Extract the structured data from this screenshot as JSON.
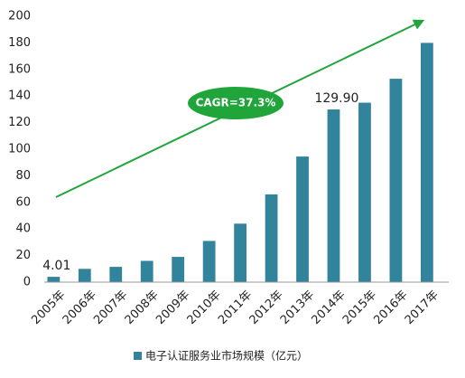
{
  "chart_data": {
    "type": "bar",
    "categories": [
      "2005年",
      "2006年",
      "2007年",
      "2008年",
      "2009年",
      "2010年",
      "2011年",
      "2012年",
      "2013年",
      "2014年",
      "2015年",
      "2016年",
      "2017年"
    ],
    "series": [
      {
        "name": "电子认证服务业市场规模（亿元）",
        "color": "#31849b",
        "values": [
          4.01,
          10,
          11.5,
          16,
          19,
          31,
          44,
          66,
          94.5,
          129.9,
          135,
          153,
          180
        ],
        "value_labels": [
          "4.01",
          null,
          null,
          null,
          null,
          null,
          null,
          null,
          null,
          "129.90",
          null,
          null,
          null
        ]
      }
    ],
    "annotation": "CAGR=37.3%",
    "ylim": [
      0,
      200
    ],
    "yticks": [
      0,
      20,
      40,
      60,
      80,
      100,
      120,
      140,
      160,
      180,
      200
    ],
    "grid": false
  }
}
